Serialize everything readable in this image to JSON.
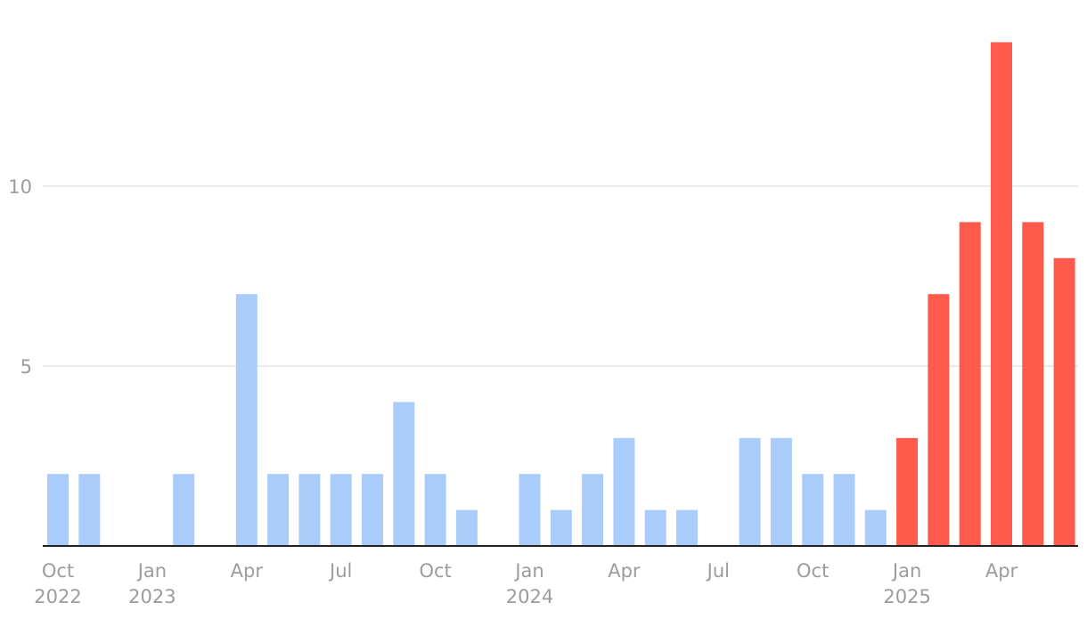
{
  "chart_data": {
    "type": "bar",
    "title": "",
    "xlabel": "",
    "ylabel": "",
    "ylim": [
      0,
      15
    ],
    "yticks": [
      5,
      10
    ],
    "grid": true,
    "x": [
      "2022-10",
      "2022-11",
      "2022-12",
      "2023-01",
      "2023-02",
      "2023-03",
      "2023-04",
      "2023-05",
      "2023-06",
      "2023-07",
      "2023-08",
      "2023-09",
      "2023-10",
      "2023-11",
      "2023-12",
      "2024-01",
      "2024-02",
      "2024-03",
      "2024-04",
      "2024-05",
      "2024-06",
      "2024-07",
      "2024-08",
      "2024-09",
      "2024-10",
      "2024-11",
      "2024-12",
      "2025-01",
      "2025-02",
      "2025-03",
      "2025-04",
      "2025-05",
      "2025-06"
    ],
    "values": [
      2,
      2,
      0,
      0,
      2,
      0,
      7,
      2,
      2,
      2,
      2,
      4,
      2,
      1,
      0,
      2,
      1,
      2,
      3,
      1,
      1,
      0,
      3,
      3,
      2,
      2,
      1,
      3,
      7,
      9,
      14,
      9,
      8
    ],
    "highlight_from": "2025-01",
    "colors": {
      "base": "#aaccfb",
      "highlight": "#ff5a4b",
      "grid": "#e4e4e4",
      "axis": "#222222",
      "tick_text": "#9c9c9c"
    },
    "x_tick_labels": [
      {
        "x": "2022-10",
        "month": "Oct",
        "year": "2022"
      },
      {
        "x": "2023-01",
        "month": "Jan",
        "year": "2023"
      },
      {
        "x": "2023-04",
        "month": "Apr",
        "year": ""
      },
      {
        "x": "2023-07",
        "month": "Jul",
        "year": ""
      },
      {
        "x": "2023-10",
        "month": "Oct",
        "year": ""
      },
      {
        "x": "2024-01",
        "month": "Jan",
        "year": "2024"
      },
      {
        "x": "2024-04",
        "month": "Apr",
        "year": ""
      },
      {
        "x": "2024-07",
        "month": "Jul",
        "year": ""
      },
      {
        "x": "2024-10",
        "month": "Oct",
        "year": ""
      },
      {
        "x": "2025-01",
        "month": "Jan",
        "year": "2025"
      },
      {
        "x": "2025-04",
        "month": "Apr",
        "year": ""
      }
    ]
  }
}
